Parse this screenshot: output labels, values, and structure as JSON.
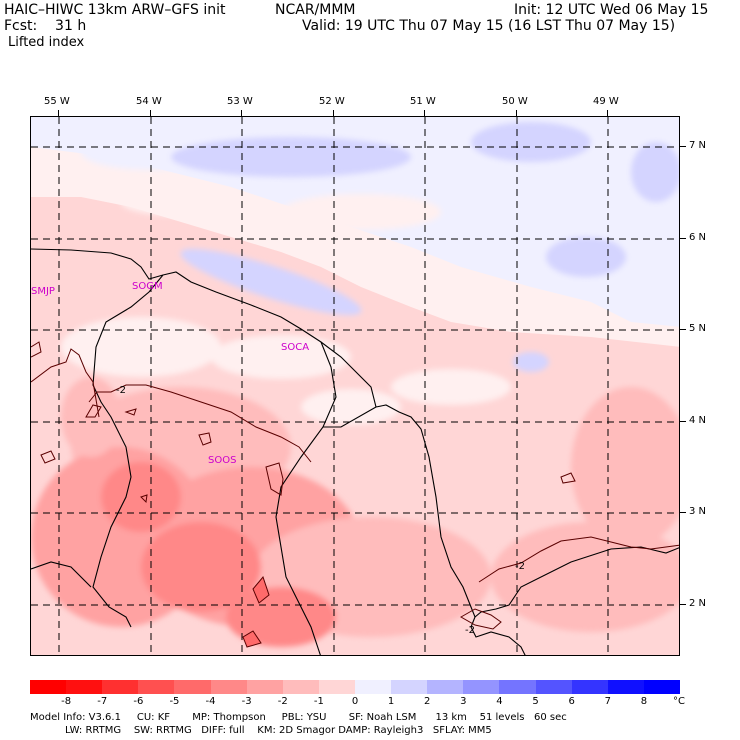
{
  "header": {
    "model": "HAIC–HIWC 13km ARW–GFS init",
    "org": "NCAR/MMM",
    "init": "Init: 12 UTC Wed 06 May 15",
    "fcst": "Fcst:    31 h",
    "valid": "Valid: 19 UTC Thu 07 May 15 (16 LST Thu 07 May 15)",
    "field": "Lifted index"
  },
  "map": {
    "lon_labels": [
      "55 W",
      "54 W",
      "53 W",
      "52 W",
      "51 W",
      "50 W",
      "49 W"
    ],
    "lat_labels": [
      "7 N",
      "6 N",
      "5 N",
      "4 N",
      "3 N",
      "2 N"
    ],
    "stations": [
      "SMJP",
      "SOGM",
      "SOCA",
      "SOOS"
    ],
    "contour_labels": [
      "-2",
      "-2",
      "-2"
    ]
  },
  "legend": {
    "labels": [
      "-8",
      "-7",
      "-6",
      "-5",
      "-4",
      "-3",
      "-2",
      "-1",
      "0",
      "1",
      "2",
      "3",
      "4",
      "5",
      "6",
      "7",
      "8"
    ],
    "unit": "°C",
    "colors": [
      "#ff1010",
      "#ff3030",
      "#ff5050",
      "#ff6a6a",
      "#ff8888",
      "#ffa2a2",
      "#ffbcbc",
      "#ffd6d6",
      "#fff0f0",
      "#f0f0ff",
      "#d4d4ff",
      "#b4b4ff",
      "#9494ff",
      "#7474ff",
      "#5454ff",
      "#3434ff",
      "#1010ff"
    ]
  },
  "footer": {
    "line1": "Model Info: V3.6.1     CU: KF       MP: Thompson     PBL: YSU       SF: Noah LSM      13 km    51 levels   60 sec",
    "line2": "           LW: RRTMG    SW: RRTMG   DIFF: full    KM: 2D Smagor DAMP: Rayleigh3   SFLAY: MM5"
  }
}
